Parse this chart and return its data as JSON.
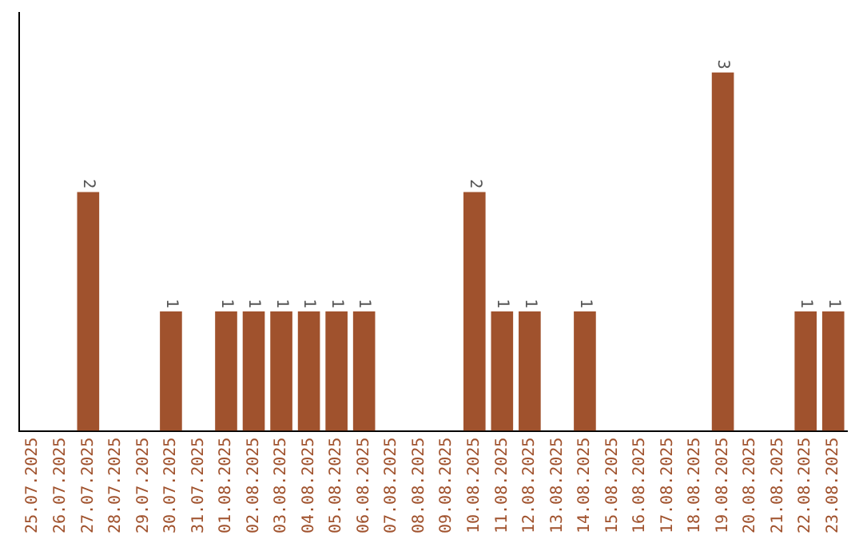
{
  "chart_data": {
    "type": "bar",
    "categories": [
      "25.07.2025",
      "26.07.2025",
      "27.07.2025",
      "28.07.2025",
      "29.07.2025",
      "30.07.2025",
      "31.07.2025",
      "01.08.2025",
      "02.08.2025",
      "03.08.2025",
      "04.08.2025",
      "05.08.2025",
      "06.08.2025",
      "07.08.2025",
      "08.08.2025",
      "09.08.2025",
      "10.08.2025",
      "11.08.2025",
      "12.08.2025",
      "13.08.2025",
      "14.08.2025",
      "15.08.2025",
      "16.08.2025",
      "17.08.2025",
      "18.08.2025",
      "19.08.2025",
      "20.08.2025",
      "21.08.2025",
      "22.08.2025",
      "23.08.2025"
    ],
    "values": [
      0,
      0,
      2,
      0,
      0,
      1,
      0,
      1,
      1,
      1,
      1,
      1,
      1,
      0,
      0,
      0,
      2,
      1,
      1,
      0,
      1,
      0,
      0,
      0,
      0,
      3,
      0,
      0,
      1,
      1
    ],
    "value_labels": [
      null,
      null,
      "2",
      null,
      null,
      "1",
      null,
      "1",
      "1",
      "1",
      "1",
      "1",
      "1",
      null,
      null,
      null,
      "2",
      "1",
      "1",
      null,
      "1",
      null,
      null,
      null,
      null,
      "3",
      null,
      null,
      "1",
      "1"
    ],
    "color": "#a0522d",
    "tick_labels": "x",
    "grid": false,
    "legend": false
  }
}
